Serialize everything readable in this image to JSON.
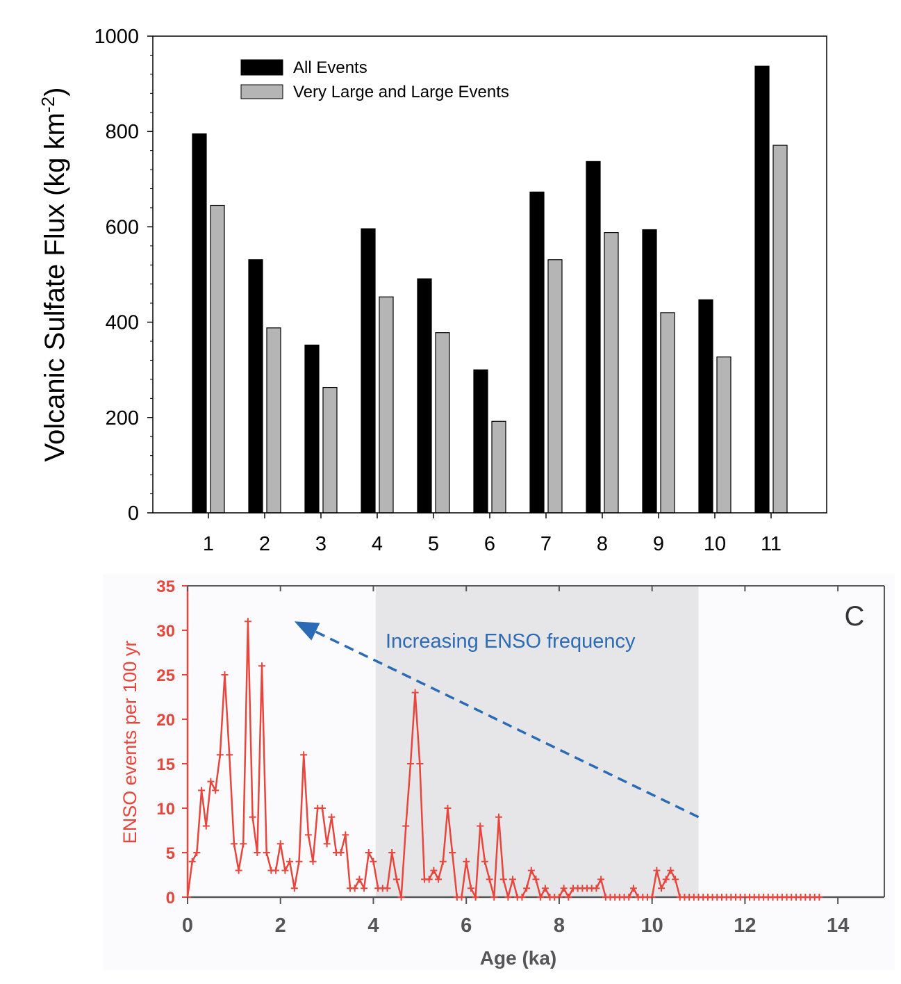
{
  "chart_data": [
    {
      "type": "bar",
      "title": "",
      "ylabel": "Volcanic Sulfate Flux (kg km",
      "ylabel_superscript": "-2",
      "ylabel_close": ")",
      "xlabel": "",
      "ylim": [
        0,
        1000
      ],
      "yticks": [
        "0",
        "200",
        "400",
        "600",
        "800",
        "1000"
      ],
      "categories": [
        "1",
        "2",
        "3",
        "4",
        "5",
        "6",
        "7",
        "8",
        "9",
        "10",
        "11"
      ],
      "series": [
        {
          "name": "All Events",
          "color": "#000000",
          "values": [
            795,
            531,
            352,
            596,
            491,
            300,
            673,
            737,
            594,
            447,
            937
          ]
        },
        {
          "name": "Very Large and Large Events",
          "color": "#b5b5b5",
          "values": [
            645,
            388,
            263,
            453,
            378,
            192,
            531,
            588,
            420,
            327,
            771
          ]
        }
      ],
      "legend_position": "top-left"
    },
    {
      "type": "line",
      "panel_label": "C",
      "xlabel": "Age (ka)",
      "ylabel": "ENSO events per 100 yr",
      "xlim": [
        0,
        15
      ],
      "ylim": [
        0,
        35
      ],
      "xticks": [
        "0",
        "2",
        "4",
        "6",
        "8",
        "10",
        "12",
        "14"
      ],
      "yticks": [
        "0",
        "5",
        "10",
        "15",
        "20",
        "25",
        "30",
        "35"
      ],
      "shaded_region": [
        4.05,
        11.0
      ],
      "annotation": "Increasing ENSO frequency",
      "line_color": "#e8453c",
      "annotation_color": "#2b6bb5",
      "arrow": {
        "from": [
          11.0,
          9
        ],
        "to": [
          2.3,
          31
        ]
      },
      "series": [
        {
          "name": "ENSO events",
          "x": [
            0.0,
            0.1,
            0.2,
            0.3,
            0.4,
            0.5,
            0.6,
            0.7,
            0.8,
            0.9,
            1.0,
            1.1,
            1.2,
            1.3,
            1.4,
            1.5,
            1.6,
            1.7,
            1.8,
            1.9,
            2.0,
            2.1,
            2.2,
            2.3,
            2.4,
            2.5,
            2.6,
            2.7,
            2.8,
            2.9,
            3.0,
            3.1,
            3.2,
            3.3,
            3.4,
            3.5,
            3.6,
            3.7,
            3.8,
            3.9,
            4.0,
            4.1,
            4.2,
            4.3,
            4.4,
            4.5,
            4.6,
            4.7,
            4.8,
            4.9,
            5.0,
            5.1,
            5.2,
            5.3,
            5.4,
            5.5,
            5.6,
            5.7,
            5.8,
            5.9,
            6.0,
            6.1,
            6.2,
            6.3,
            6.4,
            6.5,
            6.6,
            6.7,
            6.8,
            6.9,
            7.0,
            7.1,
            7.2,
            7.3,
            7.4,
            7.5,
            7.6,
            7.7,
            7.8,
            7.9,
            8.0,
            8.1,
            8.2,
            8.3,
            8.4,
            8.5,
            8.6,
            8.7,
            8.8,
            8.9,
            9.0,
            9.1,
            9.2,
            9.3,
            9.4,
            9.5,
            9.6,
            9.7,
            9.8,
            9.9,
            10.0,
            10.1,
            10.2,
            10.3,
            10.4,
            10.5,
            10.6,
            10.7,
            10.8,
            10.9,
            11.0,
            11.1,
            11.2,
            11.3,
            11.4,
            11.5,
            11.6,
            11.7,
            11.8,
            11.9,
            12.0,
            12.1,
            12.2,
            12.3,
            12.4,
            12.5,
            12.6,
            12.7,
            12.8,
            12.9,
            13.0,
            13.1,
            13.2,
            13.3,
            13.4,
            13.5,
            13.6
          ],
          "y": [
            0,
            4,
            5,
            12,
            8,
            13,
            12,
            16,
            25,
            16,
            6,
            3,
            6,
            31,
            9,
            5,
            26,
            5,
            3,
            3,
            6,
            3,
            4,
            1,
            4,
            16,
            7,
            4,
            10,
            10,
            6,
            9,
            5,
            5,
            7,
            1,
            1,
            2,
            1,
            5,
            4,
            1,
            1,
            1,
            5,
            2,
            0,
            8,
            15,
            23,
            15,
            2,
            2,
            3,
            2,
            4,
            10,
            5,
            0,
            0,
            4,
            1,
            0,
            8,
            4,
            2,
            0,
            9,
            2,
            0,
            2,
            0,
            0,
            1,
            3,
            2,
            0,
            1,
            0,
            0,
            0,
            1,
            0,
            1,
            1,
            1,
            1,
            1,
            1,
            2,
            0,
            0,
            0,
            0,
            0,
            0,
            1,
            0,
            0,
            0,
            0,
            3,
            1,
            2,
            3,
            2,
            0,
            0,
            0,
            0,
            0,
            0,
            0,
            0,
            0,
            0,
            0,
            0,
            0,
            0,
            0,
            0,
            0,
            0,
            0,
            0,
            0,
            0,
            0,
            0,
            0,
            0,
            0,
            0,
            0,
            0,
            0
          ]
        }
      ]
    }
  ]
}
